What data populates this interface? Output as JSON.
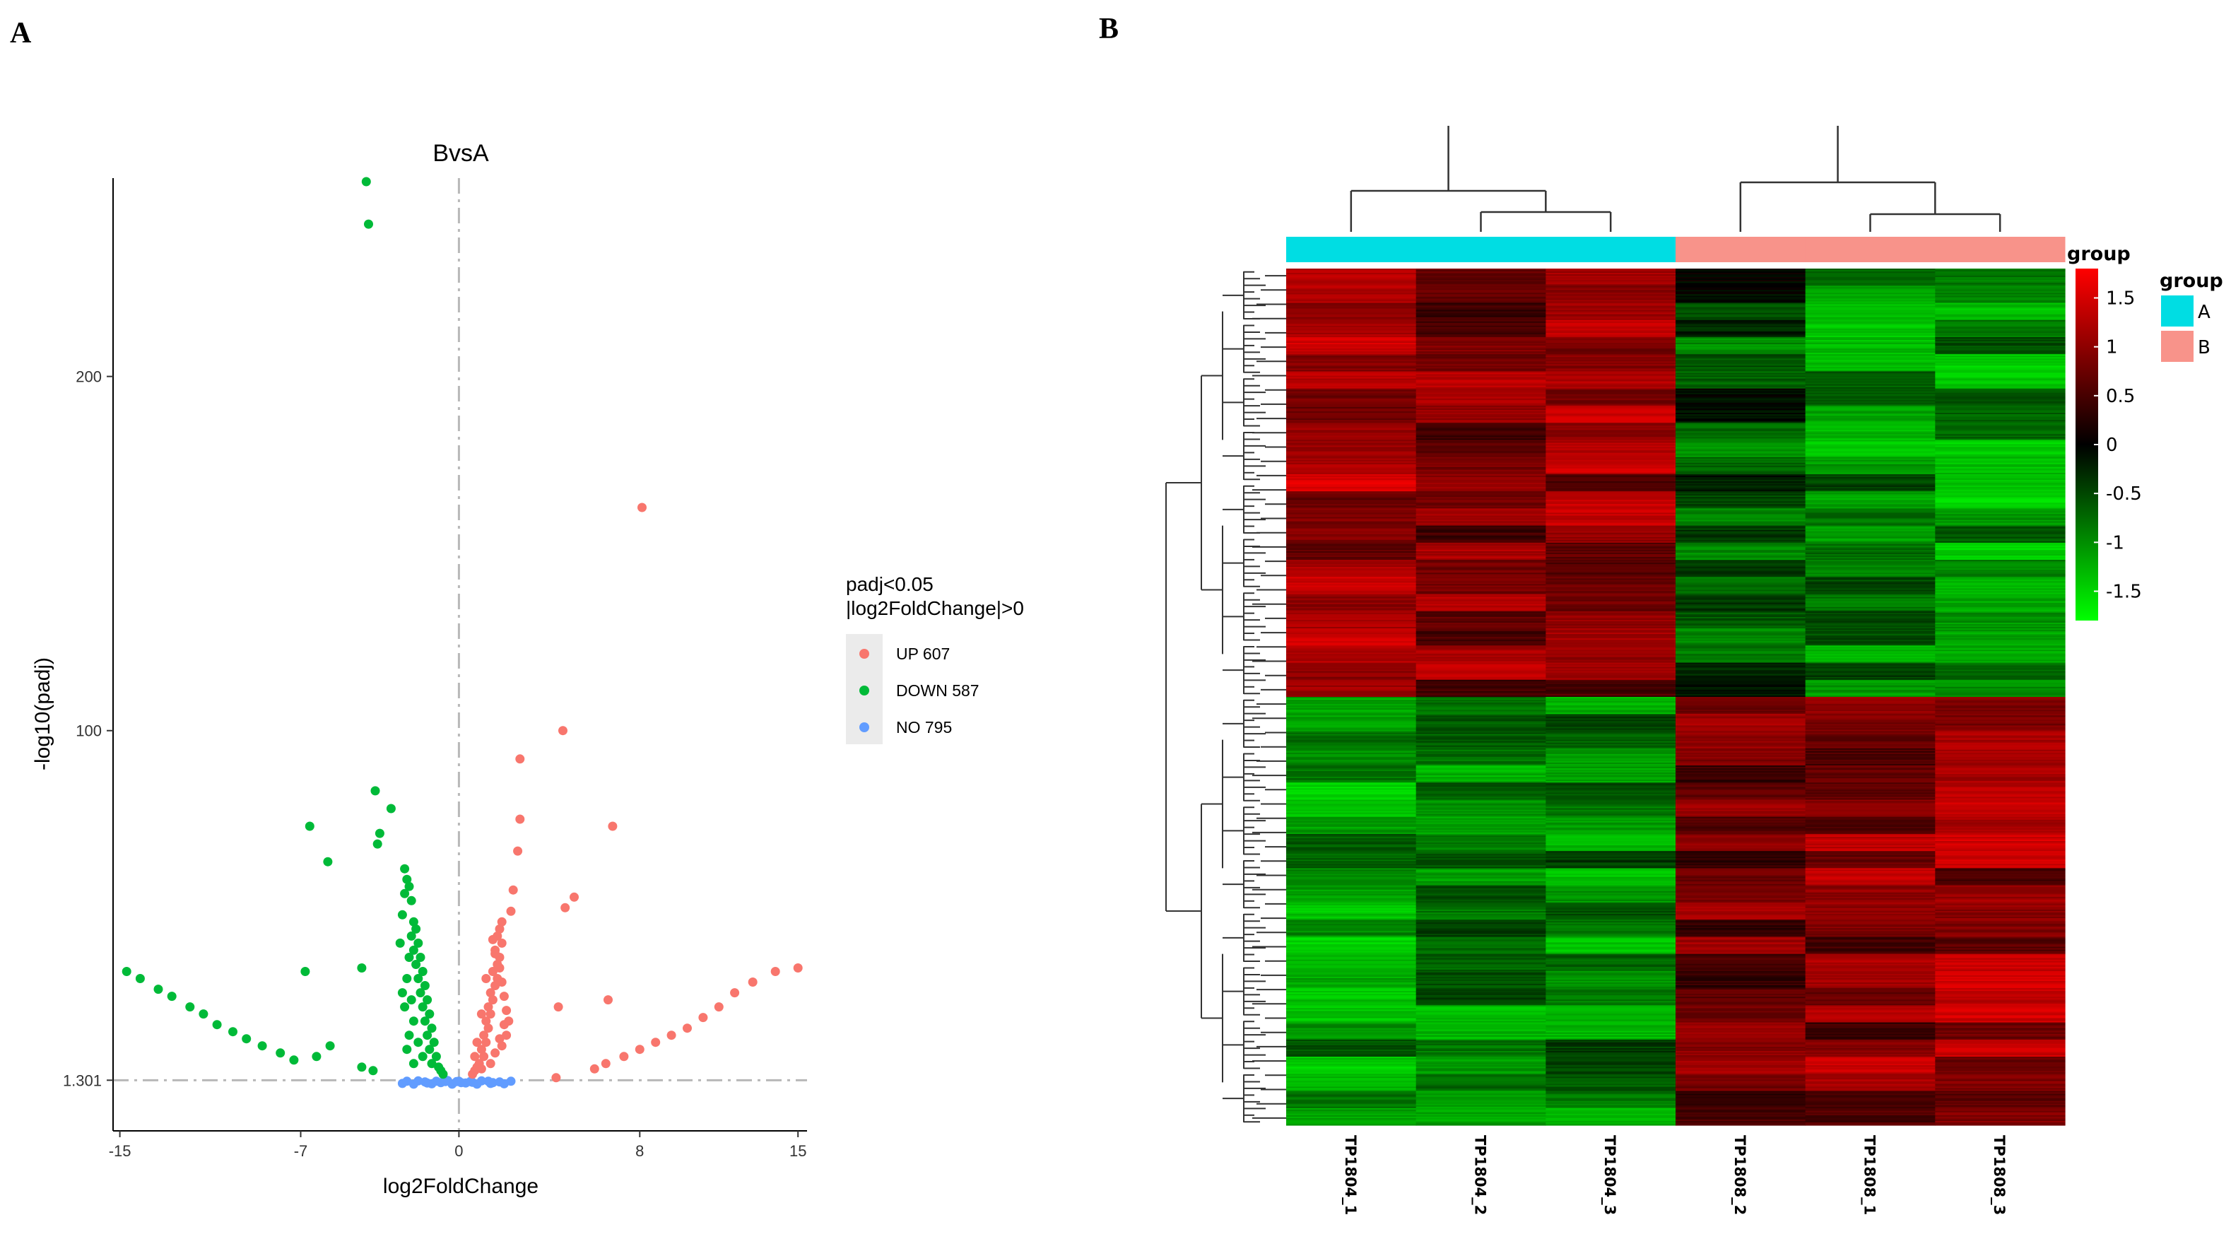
{
  "panels": {
    "a_letter": "A",
    "b_letter": "B"
  },
  "chart_data": [
    {
      "type": "scatter",
      "title": "BvsA",
      "xlabel": "log2FoldChange",
      "ylabel": "-log10(padj)",
      "xlim": [
        -15.3,
        15.4
      ],
      "ylim": [
        -13,
        256
      ],
      "x_ticks": [
        -15,
        -7,
        0,
        8,
        15
      ],
      "x_tick_labels": [
        "-15",
        "-7",
        "0",
        "8",
        "15"
      ],
      "y_ticks": [
        1.301,
        100,
        200
      ],
      "y_tick_labels": [
        "1.301",
        "100",
        "200"
      ],
      "threshold_y": 1.301,
      "threshold_x": 0,
      "grid": false,
      "legend": {
        "title_line1": "padj<0.05",
        "title_line2": "|log2FoldChange|>0",
        "placement": "right"
      },
      "series": [
        {
          "name": "UP 607",
          "color": "#F8766D",
          "points": [
            [
              8.1,
              163
            ],
            [
              4.6,
              100
            ],
            [
              2.7,
              92
            ],
            [
              6.8,
              73
            ],
            [
              2.7,
              75
            ],
            [
              2.6,
              66
            ],
            [
              5.1,
              53
            ],
            [
              4.7,
              50
            ],
            [
              2.4,
              55
            ],
            [
              4.4,
              22
            ],
            [
              6.6,
              24
            ],
            [
              4.3,
              2
            ],
            [
              15.0,
              33
            ],
            [
              14.0,
              32
            ],
            [
              13.0,
              29
            ],
            [
              12.2,
              26
            ],
            [
              11.5,
              22
            ],
            [
              10.8,
              19
            ],
            [
              10.1,
              16
            ],
            [
              9.4,
              14
            ],
            [
              8.7,
              12
            ],
            [
              8.0,
              10
            ],
            [
              7.3,
              8
            ],
            [
              6.5,
              6
            ],
            [
              6.0,
              4.5
            ],
            [
              1.9,
              46
            ],
            [
              1.8,
              44
            ],
            [
              1.7,
              42
            ],
            [
              1.9,
              40
            ],
            [
              1.6,
              38
            ],
            [
              1.8,
              36
            ],
            [
              1.7,
              34
            ],
            [
              1.5,
              32
            ],
            [
              1.7,
              30
            ],
            [
              1.6,
              28
            ],
            [
              1.4,
              26
            ],
            [
              1.5,
              24
            ],
            [
              1.3,
              22
            ],
            [
              1.4,
              20
            ],
            [
              1.2,
              18
            ],
            [
              1.3,
              16
            ],
            [
              1.1,
              14
            ],
            [
              1.2,
              12
            ],
            [
              1.0,
              10
            ],
            [
              1.1,
              8
            ],
            [
              0.9,
              6
            ],
            [
              0.8,
              5
            ],
            [
              0.7,
              4
            ],
            [
              0.6,
              3
            ],
            [
              1.0,
              4.5
            ],
            [
              1.4,
              6
            ],
            [
              1.6,
              9
            ],
            [
              1.8,
              13
            ],
            [
              2.0,
              17
            ],
            [
              2.1,
              21
            ],
            [
              2.0,
              25
            ],
            [
              1.9,
              29
            ],
            [
              1.8,
              33
            ],
            [
              1.6,
              37
            ],
            [
              1.5,
              41
            ],
            [
              2.3,
              49
            ],
            [
              1.2,
              30
            ],
            [
              1.0,
              20
            ],
            [
              0.8,
              12
            ],
            [
              0.7,
              8
            ],
            [
              1.9,
              11
            ],
            [
              2.1,
              14
            ],
            [
              2.2,
              18
            ]
          ]
        },
        {
          "name": "DOWN 587",
          "color": "#00BA38",
          "points": [
            [
              -4.1,
              255
            ],
            [
              -4.0,
              243
            ],
            [
              -3.7,
              83
            ],
            [
              -3.0,
              78
            ],
            [
              -3.5,
              71
            ],
            [
              -3.6,
              68
            ],
            [
              -6.6,
              73
            ],
            [
              -5.8,
              63
            ],
            [
              -2.4,
              61
            ],
            [
              -2.3,
              58
            ],
            [
              -2.2,
              56
            ],
            [
              -2.4,
              54
            ],
            [
              -2.1,
              52
            ],
            [
              -2.5,
              48
            ],
            [
              -4.3,
              33
            ],
            [
              -6.8,
              32
            ],
            [
              -14.7,
              32
            ],
            [
              -14.1,
              30
            ],
            [
              -13.3,
              27
            ],
            [
              -12.7,
              25
            ],
            [
              -11.9,
              22
            ],
            [
              -11.3,
              20
            ],
            [
              -10.7,
              17
            ],
            [
              -10.0,
              15
            ],
            [
              -9.4,
              13
            ],
            [
              -8.7,
              11
            ],
            [
              -7.9,
              9
            ],
            [
              -7.3,
              7
            ],
            [
              -6.3,
              8
            ],
            [
              -5.7,
              11
            ],
            [
              -4.3,
              5
            ],
            [
              -3.8,
              4
            ],
            [
              -2.0,
              46
            ],
            [
              -1.9,
              44
            ],
            [
              -2.1,
              42
            ],
            [
              -1.8,
              40
            ],
            [
              -2.0,
              38
            ],
            [
              -1.7,
              36
            ],
            [
              -1.9,
              34
            ],
            [
              -1.6,
              32
            ],
            [
              -1.8,
              30
            ],
            [
              -1.5,
              28
            ],
            [
              -1.7,
              26
            ],
            [
              -1.4,
              24
            ],
            [
              -1.6,
              22
            ],
            [
              -1.3,
              20
            ],
            [
              -1.5,
              18
            ],
            [
              -1.2,
              16
            ],
            [
              -1.4,
              14
            ],
            [
              -1.1,
              12
            ],
            [
              -1.3,
              10
            ],
            [
              -1.0,
              8
            ],
            [
              -1.2,
              6
            ],
            [
              -0.9,
              5
            ],
            [
              -0.8,
              4
            ],
            [
              -0.7,
              3
            ],
            [
              -2.2,
              36
            ],
            [
              -2.3,
              30
            ],
            [
              -2.1,
              24
            ],
            [
              -2.0,
              18
            ],
            [
              -2.4,
              22
            ],
            [
              -2.2,
              14
            ],
            [
              -2.5,
              26
            ],
            [
              -2.6,
              40
            ],
            [
              -1.8,
              12
            ],
            [
              -1.6,
              8
            ],
            [
              -2.3,
              10
            ],
            [
              -2.0,
              6
            ]
          ]
        },
        {
          "name": "NO 795",
          "color": "#619CFF",
          "points": [
            [
              -2.5,
              0.4
            ],
            [
              -2.0,
              0.2
            ],
            [
              -1.5,
              0.8
            ],
            [
              -1.0,
              1.0
            ],
            [
              -0.5,
              1.2
            ],
            [
              0.0,
              1.0
            ],
            [
              0.5,
              0.9
            ],
            [
              1.0,
              1.1
            ],
            [
              1.5,
              0.6
            ],
            [
              2.0,
              0.3
            ],
            [
              -1.8,
              1.1
            ],
            [
              -1.2,
              0.3
            ],
            [
              -0.8,
              0.6
            ],
            [
              -0.3,
              0.2
            ],
            [
              0.3,
              0.5
            ],
            [
              0.8,
              0.2
            ],
            [
              1.3,
              1.0
            ],
            [
              1.8,
              0.8
            ],
            [
              -2.3,
              1.0
            ],
            [
              2.3,
              1.0
            ],
            [
              -0.6,
              0.9
            ],
            [
              0.6,
              0.7
            ],
            [
              -1.4,
              0.5
            ],
            [
              1.4,
              0.4
            ],
            [
              0.1,
              0.6
            ],
            [
              -0.1,
              0.9
            ]
          ]
        }
      ]
    },
    {
      "type": "heatmap",
      "columns": [
        "TP1804_1",
        "TP1804_2",
        "TP1804_3",
        "TP1808_2",
        "TP1808_1",
        "TP1808_3"
      ],
      "column_groups": [
        "A",
        "A",
        "A",
        "B",
        "B",
        "B"
      ],
      "group_annotation_label": "group",
      "group_legend": {
        "title": "group",
        "entries": [
          {
            "name": "A",
            "color": "#00DDE3"
          },
          {
            "name": "B",
            "color": "#F8938A"
          }
        ]
      },
      "color_scale": {
        "min": -1.8,
        "max": 1.8,
        "low_color": "#00FF00",
        "mid_color": "#000000",
        "high_color": "#FF0000",
        "tick_values": [
          1.5,
          1,
          0.5,
          0,
          -0.5,
          -1,
          -1.5
        ],
        "tick_labels": [
          "1.5",
          "1",
          "0.5",
          "0",
          "-0.5",
          "-1",
          "-1.5"
        ]
      },
      "row_clusters": [
        {
          "n_rows": 300,
          "profile": [
            1.1,
            0.9,
            1.0,
            -0.5,
            -0.9,
            -1.0
          ]
        },
        {
          "n_rows": 300,
          "profile": [
            -1.0,
            -0.9,
            -0.9,
            0.8,
            0.9,
            1.0
          ]
        }
      ]
    }
  ]
}
